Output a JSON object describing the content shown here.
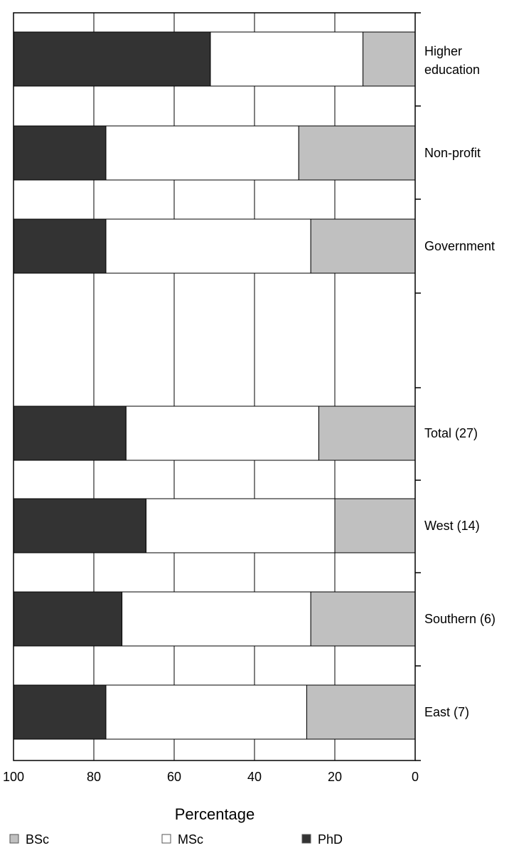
{
  "chart_data": {
    "type": "bar",
    "orientation": "horizontal",
    "stacked": true,
    "x_reversed": true,
    "xlabel": "Percentage",
    "xlim": [
      0,
      100
    ],
    "xticks": [
      "100",
      "80",
      "60",
      "40",
      "20",
      "0"
    ],
    "grid": true,
    "legend_position": "bottom",
    "categories": [
      "Higher education",
      "Non-profit",
      "Government",
      "",
      "Total (27)",
      "West (14)",
      "Southern (6)",
      "East (7)"
    ],
    "series": [
      {
        "name": "BSc",
        "color": "#c0c0c0",
        "values": [
          13,
          29,
          26,
          null,
          24,
          20,
          26,
          27
        ]
      },
      {
        "name": "MSc",
        "color": "#ffffff",
        "values": [
          38,
          48,
          51,
          null,
          48,
          47,
          47,
          50
        ]
      },
      {
        "name": "PhD",
        "color": "#333333",
        "values": [
          49,
          23,
          23,
          null,
          28,
          33,
          27,
          23
        ]
      }
    ]
  },
  "legend": {
    "items": [
      {
        "label": "BSc",
        "color": "#c0c0c0"
      },
      {
        "label": "MSc",
        "color": "#ffffff"
      },
      {
        "label": "PhD",
        "color": "#333333"
      }
    ]
  }
}
